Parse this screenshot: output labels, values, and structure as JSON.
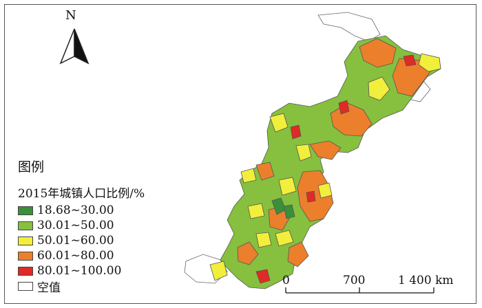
{
  "north_arrow": {
    "label": "N",
    "icon": "north-arrow-icon"
  },
  "legend": {
    "title": "图例",
    "subtitle": "2015年城镇人口比例/%",
    "items": [
      {
        "label": "18.68~30.00",
        "color": "#3a8f3a"
      },
      {
        "label": "30.01~50.00",
        "color": "#86c03e"
      },
      {
        "label": "50.01~60.00",
        "color": "#f2ee3c"
      },
      {
        "label": "60.01~80.00",
        "color": "#ec7f2c"
      },
      {
        "label": "80.01~100.00",
        "color": "#e02a25"
      },
      {
        "label": "空值",
        "color": "#ffffff"
      }
    ]
  },
  "scale_bar": {
    "labels": [
      "0",
      "700",
      "1 400 km"
    ]
  }
}
